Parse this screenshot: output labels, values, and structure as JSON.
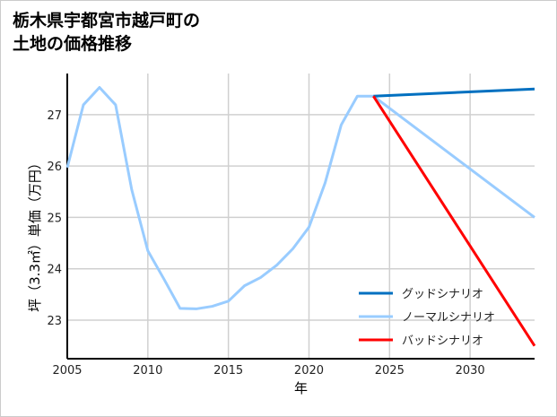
{
  "chart_data": {
    "type": "line",
    "title_lines": [
      "栃木県宇都宮市越戸町の",
      "土地の価格推移"
    ],
    "xlabel": "年",
    "ylabel": "坪（3.3㎡）単価（万円）",
    "xlim": [
      2005,
      2034
    ],
    "ylim": [
      22.25,
      27.8
    ],
    "xticks": [
      2005,
      2010,
      2015,
      2020,
      2025,
      2030
    ],
    "yticks": [
      23,
      24,
      25,
      26,
      27
    ],
    "grid": true,
    "legend_position": "bottom-right",
    "series": [
      {
        "name": "グッドシナリオ",
        "color": "#0070C0",
        "x": [
          2024,
          2034
        ],
        "y": [
          27.36,
          27.5
        ]
      },
      {
        "name": "ノーマルシナリオ",
        "color": "#99CCFF",
        "x": [
          2005,
          2006,
          2007,
          2008,
          2009,
          2010,
          2011,
          2012,
          2013,
          2014,
          2015,
          2016,
          2017,
          2018,
          2019,
          2020,
          2021,
          2022,
          2023,
          2024,
          2034
        ],
        "y": [
          25.97,
          27.19,
          27.53,
          27.19,
          25.54,
          24.35,
          23.8,
          23.23,
          23.22,
          23.27,
          23.37,
          23.67,
          23.83,
          24.07,
          24.39,
          24.81,
          25.67,
          26.8,
          27.36,
          27.36,
          25.0
        ]
      },
      {
        "name": "バッドシナリオ",
        "color": "#FF0000",
        "x": [
          2024,
          2034
        ],
        "y": [
          27.36,
          22.5
        ]
      }
    ]
  }
}
